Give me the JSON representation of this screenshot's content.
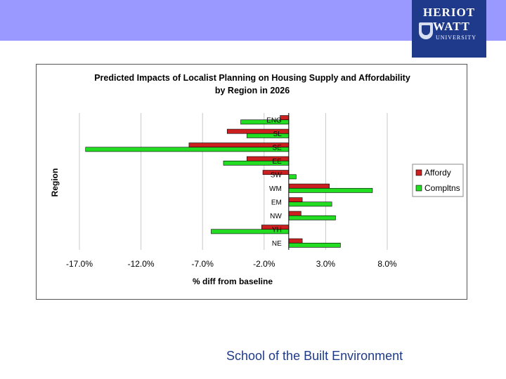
{
  "header": {
    "logo_line1": "HERIOT",
    "logo_line2": "WATT",
    "logo_line3": "UNIVERSITY",
    "logo_color": "#1f3a8a",
    "banner_color": "#9999ff"
  },
  "footer": {
    "text": "School of the Built Environment"
  },
  "chart_data": {
    "type": "bar",
    "orientation": "horizontal",
    "title_line1": "Predicted Impacts of Localist Planning on Housing Supply and Affordability",
    "title_line2": "by Region in 2026",
    "xlabel": "% diff from baseline",
    "ylabel": "Region",
    "xlim": [
      -17.0,
      8.0
    ],
    "xticks": [
      -17.0,
      -12.0,
      -7.0,
      -2.0,
      3.0,
      8.0
    ],
    "xtick_labels": [
      "-17.0%",
      "-12.0%",
      "-7.0%",
      "-2.0%",
      "3.0%",
      "8.0%"
    ],
    "grid": "vertical",
    "legend_position": "right",
    "categories": [
      "ENG",
      "SL",
      "SE",
      "EE",
      "SW",
      "WM",
      "EM",
      "NW",
      "YH",
      "NE"
    ],
    "series": [
      {
        "name": "Affordy",
        "color": "#cc1f1f",
        "values": [
          -0.7,
          -5.0,
          -8.1,
          -3.4,
          -2.1,
          3.3,
          1.1,
          1.0,
          -2.2,
          1.1
        ]
      },
      {
        "name": "Compltns",
        "color": "#22dd22",
        "values": [
          -3.9,
          -3.4,
          -16.5,
          -5.3,
          0.6,
          6.8,
          3.5,
          3.8,
          -6.3,
          4.2
        ]
      }
    ]
  }
}
